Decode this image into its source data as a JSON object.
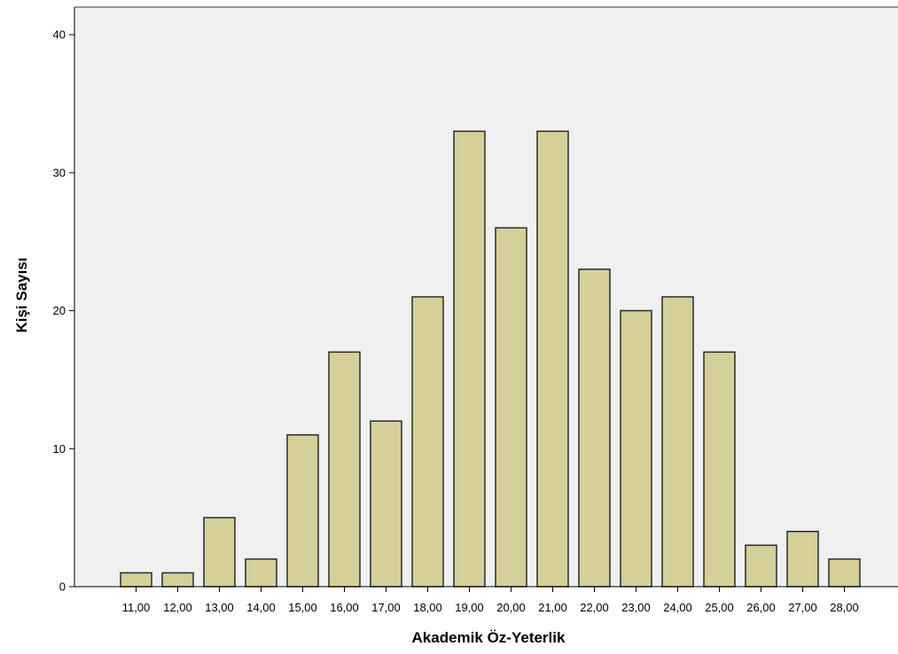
{
  "chart_data": {
    "type": "bar",
    "title": "",
    "xlabel": "Akademik Öz-Yeterlik",
    "ylabel": "Kişi Sayısı",
    "categories": [
      "11,00",
      "12,00",
      "13,00",
      "14,00",
      "15,00",
      "16,00",
      "17,00",
      "18,00",
      "19,00",
      "20,00",
      "21,00",
      "22,00",
      "23,00",
      "24,00",
      "25,00",
      "26,00",
      "27,00",
      "28,00"
    ],
    "values": [
      1,
      1,
      5,
      2,
      11,
      17,
      12,
      21,
      33,
      26,
      33,
      23,
      20,
      21,
      17,
      3,
      4,
      2
    ],
    "ylim": [
      0,
      42
    ],
    "yticks": [
      0,
      10,
      20,
      30,
      40
    ],
    "grid": false,
    "legend": "none",
    "colors": {
      "bar_fill": "#d5d09a",
      "bar_stroke": "#2b2b2b",
      "plot_bg": "#f0f0f0",
      "axis": "#000000"
    }
  }
}
